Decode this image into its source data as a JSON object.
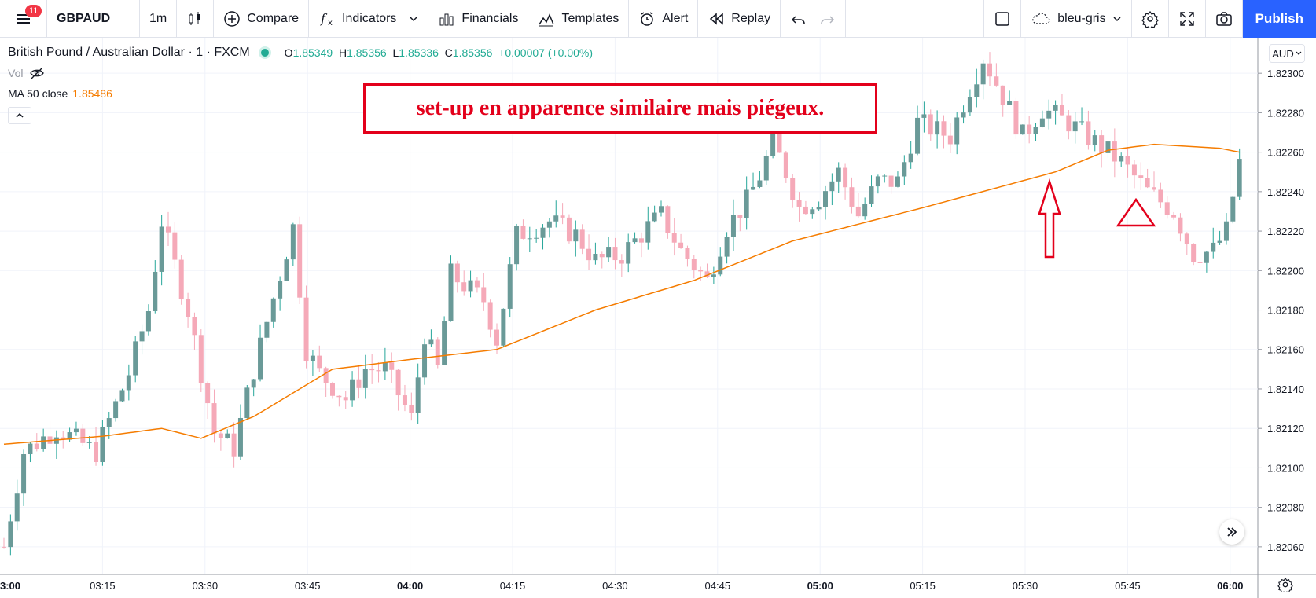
{
  "toolbar": {
    "notification_count": "11",
    "symbol": "GBPAUD",
    "interval": "1m",
    "compare_label": "Compare",
    "indicators_label": "Indicators",
    "financials_label": "Financials",
    "templates_label": "Templates",
    "alert_label": "Alert",
    "replay_label": "Replay",
    "layout_name": "bleu-gris",
    "publish_label": "Publish"
  },
  "legend": {
    "title": "British Pound / Australian Dollar · 1 · FXCM",
    "o_key": "O",
    "o_val": "1.85349",
    "h_key": "H",
    "h_val": "1.85356",
    "l_key": "L",
    "l_val": "1.85336",
    "c_key": "C",
    "c_val": "1.85356",
    "change": "+0.00007 (+0.00%)",
    "vol_label": "Vol",
    "ma_label": "MA 50 close",
    "ma_value": "1.85486"
  },
  "annotation": {
    "text": "set-up en apparence similaire mais piégeux."
  },
  "currency": "AUD",
  "colors": {
    "up": "#6a9a98",
    "down": "#f5a9b8",
    "ma": "#f57c00",
    "annotation": "#e3001b",
    "accent": "#2962ff"
  },
  "chart_data": {
    "type": "candlestick",
    "y_axis_labels": [
      "1.82300",
      "1.82280",
      "1.82260",
      "1.82240",
      "1.82220",
      "1.82200",
      "1.82180",
      "1.82160",
      "1.82140",
      "1.82120",
      "1.82100",
      "1.82080",
      "1.82060"
    ],
    "x_axis_labels": [
      "3:00",
      "03:15",
      "03:30",
      "03:45",
      "04:00",
      "04:15",
      "04:30",
      "04:45",
      "05:00",
      "05:15",
      "05:30",
      "05:45",
      "06:00"
    ],
    "x_axis_bold": [
      "3:00",
      "04:00",
      "05:00",
      "06:00"
    ],
    "ylim": [
      1.82048,
      1.82316
    ],
    "anchors_ma": [
      [
        0,
        1.82112
      ],
      [
        15,
        1.82116
      ],
      [
        24,
        1.8212
      ],
      [
        30,
        1.82115
      ],
      [
        38,
        1.82126
      ],
      [
        50,
        1.8215
      ],
      [
        62,
        1.82155
      ],
      [
        75,
        1.8216
      ],
      [
        90,
        1.8218
      ],
      [
        105,
        1.82195
      ],
      [
        120,
        1.82215
      ],
      [
        140,
        1.82232
      ],
      [
        160,
        1.8225
      ],
      [
        168,
        1.82261
      ],
      [
        175,
        1.82264
      ],
      [
        185,
        1.82262
      ],
      [
        188,
        1.8226
      ]
    ],
    "anchors_price": [
      [
        0,
        1.8206
      ],
      [
        3,
        1.82108
      ],
      [
        8,
        1.8212
      ],
      [
        14,
        1.82108
      ],
      [
        19,
        1.82148
      ],
      [
        22,
        1.8218
      ],
      [
        24,
        1.82225
      ],
      [
        28,
        1.8218
      ],
      [
        32,
        1.82118
      ],
      [
        35,
        1.8211
      ],
      [
        38,
        1.8215
      ],
      [
        42,
        1.82198
      ],
      [
        44,
        1.82222
      ],
      [
        46,
        1.8216
      ],
      [
        48,
        1.82148
      ],
      [
        52,
        1.82135
      ],
      [
        55,
        1.8215
      ],
      [
        58,
        1.8215
      ],
      [
        62,
        1.82125
      ],
      [
        64,
        1.82168
      ],
      [
        66,
        1.8215
      ],
      [
        68,
        1.82198
      ],
      [
        73,
        1.82185
      ],
      [
        75,
        1.82165
      ],
      [
        78,
        1.82218
      ],
      [
        83,
        1.82225
      ],
      [
        87,
        1.82218
      ],
      [
        90,
        1.82205
      ],
      [
        94,
        1.82208
      ],
      [
        98,
        1.82222
      ],
      [
        100,
        1.82228
      ],
      [
        103,
        1.8221
      ],
      [
        107,
        1.82195
      ],
      [
        110,
        1.82222
      ],
      [
        113,
        1.82235
      ],
      [
        115,
        1.82248
      ],
      [
        117,
        1.82265
      ],
      [
        119,
        1.8225
      ],
      [
        121,
        1.82232
      ],
      [
        124,
        1.82237
      ],
      [
        127,
        1.8225
      ],
      [
        130,
        1.82228
      ],
      [
        133,
        1.82245
      ],
      [
        136,
        1.82245
      ],
      [
        139,
        1.82275
      ],
      [
        144,
        1.82268
      ],
      [
        146,
        1.82285
      ],
      [
        149,
        1.82308
      ],
      [
        151,
        1.82295
      ],
      [
        155,
        1.82268
      ],
      [
        158,
        1.82282
      ],
      [
        162,
        1.82275
      ],
      [
        166,
        1.82265
      ],
      [
        170,
        1.82255
      ],
      [
        174,
        1.8224
      ],
      [
        178,
        1.8223
      ],
      [
        181,
        1.82208
      ],
      [
        184,
        1.8221
      ],
      [
        186,
        1.8222
      ],
      [
        188,
        1.82255
      ]
    ]
  },
  "markers": {
    "arrow": "up-arrow",
    "triangle": "triangle-outline"
  }
}
